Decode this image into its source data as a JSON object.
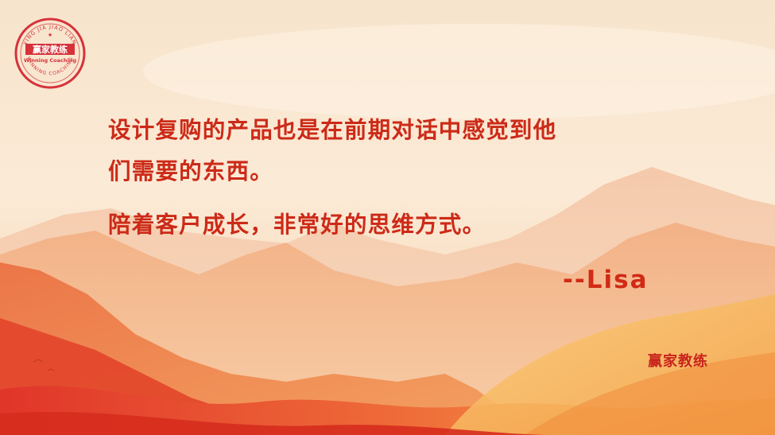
{
  "logo": {
    "seal_top_text": "YING JIA JIAO LIAN",
    "seal_center_text": "赢家教练",
    "seal_sub_text": "Winning Coaching",
    "seal_bottom_text": "WINNING COACHING",
    "color": "#d6323a"
  },
  "quote": {
    "line1": "设计复购的产品也是在前期对话中感觉到他",
    "line2": "们需要的东西。",
    "line3": "陪着客户成长，非常好的思维方式。"
  },
  "author": "--Lisa",
  "brand": "赢家教练",
  "colors": {
    "text_red": "#cc2a18",
    "sky_top": "#f7e6cf",
    "mountain_red": "#e2452a",
    "mountain_orange": "#f08a45"
  }
}
